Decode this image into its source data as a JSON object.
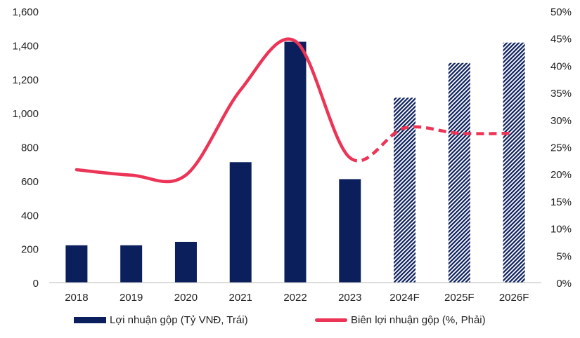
{
  "chart_data": {
    "type": "bar",
    "categories": [
      "2018",
      "2019",
      "2020",
      "2021",
      "2022",
      "2023",
      "2024F",
      "2025F",
      "2026F"
    ],
    "forecast": [
      false,
      false,
      false,
      false,
      false,
      false,
      true,
      true,
      true
    ],
    "series": [
      {
        "name": "Lợi nhuận gộp (Tỷ VNĐ, Trái)",
        "type": "bar",
        "axis": "left",
        "values": [
          220,
          220,
          240,
          710,
          1420,
          610,
          1090,
          1295,
          1415
        ],
        "color": "#0b1f5c"
      },
      {
        "name": "Biên lợi nhuận gộp (%, Phải)",
        "type": "line",
        "axis": "right",
        "values": [
          20.8,
          19.8,
          19.8,
          35.5,
          44.5,
          23.0,
          28.5,
          27.5,
          27.5
        ],
        "color": "#ec3456"
      }
    ],
    "y_left": {
      "min": 0,
      "max": 1600,
      "ticks": [
        "0",
        "200",
        "400",
        "600",
        "800",
        "1,000",
        "1,200",
        "1,400",
        "1,600"
      ]
    },
    "y_right": {
      "min": 0,
      "max": 50,
      "ticks": [
        "0%",
        "5%",
        "10%",
        "15%",
        "20%",
        "25%",
        "30%",
        "35%",
        "40%",
        "45%",
        "50%"
      ]
    },
    "grid": false,
    "legend_position": "bottom"
  }
}
